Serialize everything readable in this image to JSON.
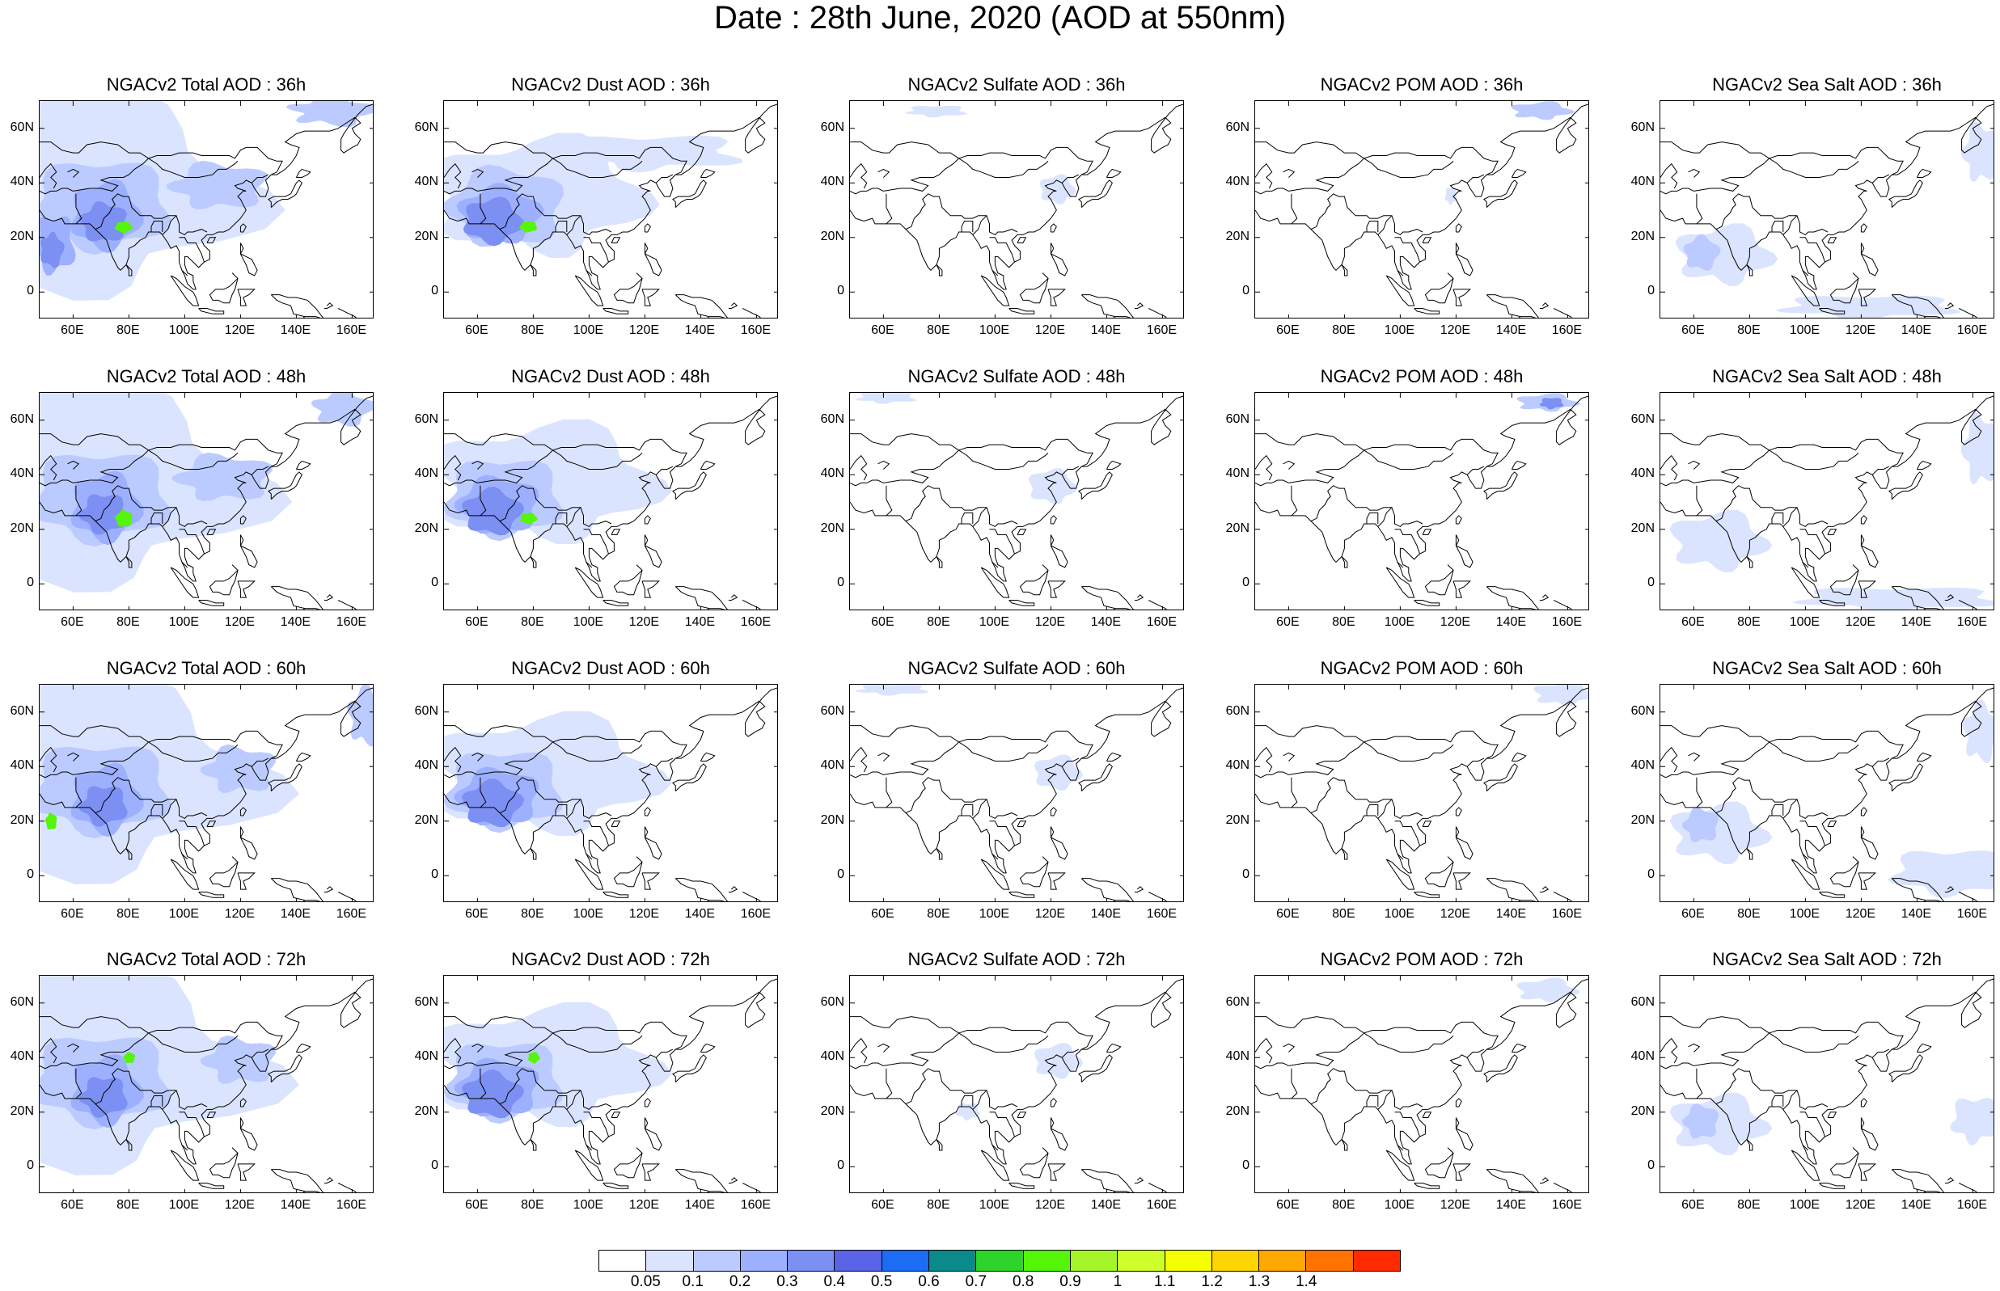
{
  "title": "Date : 28th June, 2020 (AOD at 550nm)",
  "lat_labels": [
    "60N",
    "40N",
    "20N",
    "0"
  ],
  "lon_labels": [
    "60E",
    "80E",
    "100E",
    "120E",
    "140E",
    "160E"
  ],
  "lat_values": [
    60,
    40,
    20,
    0
  ],
  "lon_values": [
    60,
    80,
    100,
    120,
    140,
    160
  ],
  "map_extent": {
    "lon": [
      48,
      168
    ],
    "lat": [
      -10,
      70
    ]
  },
  "panels": [
    {
      "title": "NGACv2 Total AOD : 36h",
      "species": "total",
      "forecast_hour": 36
    },
    {
      "title": "NGACv2 Dust AOD : 36h",
      "species": "dust",
      "forecast_hour": 36
    },
    {
      "title": "NGACv2 Sulfate AOD : 36h",
      "species": "sulfate",
      "forecast_hour": 36
    },
    {
      "title": "NGACv2 POM AOD : 36h",
      "species": "pom",
      "forecast_hour": 36
    },
    {
      "title": "NGACv2 Sea Salt AOD : 36h",
      "species": "seasalt",
      "forecast_hour": 36
    },
    {
      "title": "NGACv2 Total AOD : 48h",
      "species": "total",
      "forecast_hour": 48
    },
    {
      "title": "NGACv2 Dust AOD : 48h",
      "species": "dust",
      "forecast_hour": 48
    },
    {
      "title": "NGACv2 Sulfate AOD : 48h",
      "species": "sulfate",
      "forecast_hour": 48
    },
    {
      "title": "NGACv2 POM AOD : 48h",
      "species": "pom",
      "forecast_hour": 48
    },
    {
      "title": "NGACv2 Sea Salt AOD : 48h",
      "species": "seasalt",
      "forecast_hour": 48
    },
    {
      "title": "NGACv2 Total AOD : 60h",
      "species": "total",
      "forecast_hour": 60
    },
    {
      "title": "NGACv2 Dust AOD : 60h",
      "species": "dust",
      "forecast_hour": 60
    },
    {
      "title": "NGACv2 Sulfate AOD : 60h",
      "species": "sulfate",
      "forecast_hour": 60
    },
    {
      "title": "NGACv2 POM AOD : 60h",
      "species": "pom",
      "forecast_hour": 60
    },
    {
      "title": "NGACv2 Sea Salt AOD : 60h",
      "species": "seasalt",
      "forecast_hour": 60
    },
    {
      "title": "NGACv2 Total AOD : 72h",
      "species": "total",
      "forecast_hour": 72
    },
    {
      "title": "NGACv2 Dust AOD : 72h",
      "species": "dust",
      "forecast_hour": 72
    },
    {
      "title": "NGACv2 Sulfate AOD : 72h",
      "species": "sulfate",
      "forecast_hour": 72
    },
    {
      "title": "NGACv2 POM AOD : 72h",
      "species": "pom",
      "forecast_hour": 72
    },
    {
      "title": "NGACv2 Sea Salt  AOD : 72h",
      "species": "seasalt",
      "forecast_hour": 72
    }
  ],
  "colorbar": {
    "colors": [
      "#ffffff",
      "#dbe4ff",
      "#bccbff",
      "#9db0ff",
      "#7c8ff2",
      "#5a63e6",
      "#1c6cf5",
      "#0a8a8a",
      "#2fd42a",
      "#55f50a",
      "#a6f52a",
      "#cfff2a",
      "#f5ff00",
      "#ffd500",
      "#ffa800",
      "#ff7400",
      "#ff2a00"
    ],
    "labels": [
      "0.05",
      "0.1",
      "0.2",
      "0.3",
      "0.4",
      "0.5",
      "0.6",
      "0.7",
      "0.8",
      "0.9",
      "1",
      "1.1",
      "1.2",
      "1.3",
      "1.4"
    ]
  }
}
